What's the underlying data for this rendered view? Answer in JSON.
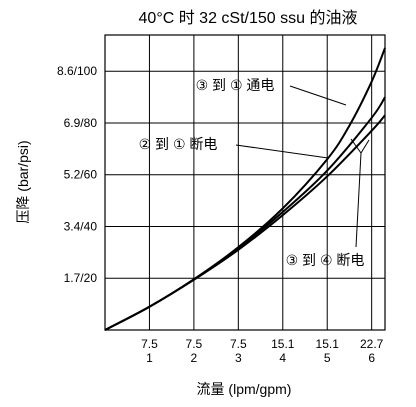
{
  "chart_data": {
    "type": "line",
    "title": "40°C 时 32 cSt/150 ssu 的油液",
    "xlabel": "流量 (lpm/gpm)",
    "ylabel": "压降 (bar/psi)",
    "x_ticks": [
      {
        "x": 1,
        "top": "7.5",
        "bottom": "1"
      },
      {
        "x": 2,
        "top": "7.5",
        "bottom": "2"
      },
      {
        "x": 3,
        "top": "7.5",
        "bottom": "3"
      },
      {
        "x": 4,
        "top": "15.1",
        "bottom": "4"
      },
      {
        "x": 5,
        "top": "15.1",
        "bottom": "5"
      },
      {
        "x": 6,
        "top": "22.7",
        "bottom": "6"
      }
    ],
    "y_ticks": [
      {
        "y": 1,
        "label": "1.7/20"
      },
      {
        "y": 2,
        "label": "3.4/40"
      },
      {
        "y": 3,
        "label": "5.2/60"
      },
      {
        "y": 4,
        "label": "6.9/80"
      },
      {
        "y": 5,
        "label": "8.6/100"
      }
    ],
    "xlim": [
      0,
      6.3
    ],
    "ylim": [
      0,
      5.7
    ],
    "grid": true,
    "series": [
      {
        "name": "③ 到 ① 通电",
        "x": [
          0,
          1,
          2,
          3,
          4,
          5,
          5.5,
          6,
          6.3
        ],
        "y": [
          0,
          0.45,
          0.98,
          1.6,
          2.35,
          3.3,
          3.95,
          4.8,
          5.45
        ]
      },
      {
        "name": "② 到 ① 断电",
        "x": [
          0,
          1,
          2,
          3,
          4,
          5,
          6,
          6.3
        ],
        "y": [
          0,
          0.45,
          0.98,
          1.58,
          2.28,
          3.08,
          4.1,
          4.5
        ]
      },
      {
        "name": "③ 到 ④ 断电",
        "x": [
          0,
          1,
          2,
          3,
          4,
          5,
          6,
          6.3
        ],
        "y": [
          0,
          0.45,
          0.97,
          1.55,
          2.22,
          2.97,
          3.85,
          4.15
        ]
      }
    ],
    "annotations": [
      {
        "text": "③ 到 ① 通电",
        "series": 0
      },
      {
        "text": "② 到 ① 断电",
        "series": 1
      },
      {
        "text": "③ 到 ④ 断电",
        "series": 2
      }
    ]
  }
}
